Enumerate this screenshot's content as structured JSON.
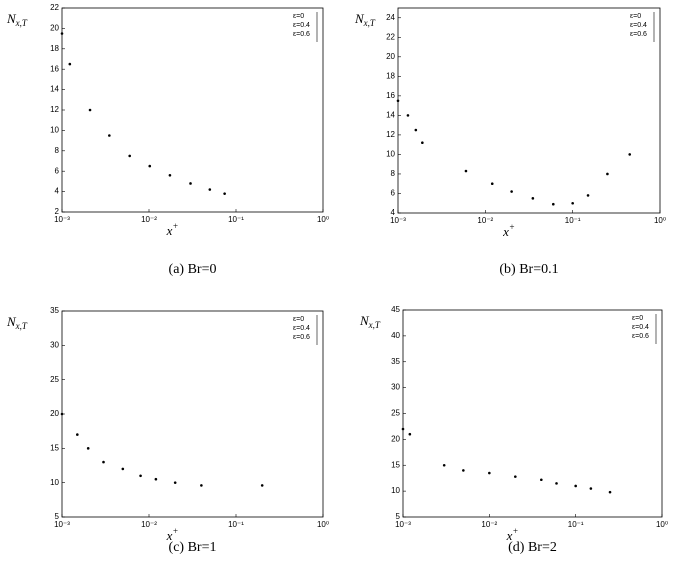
{
  "chart_data": [
    {
      "type": "scatter",
      "caption": "(a) Br=0",
      "xlabel": "x",
      "xlabel_sup": "+",
      "ylabel": "N",
      "ylabel_sub": "x,T",
      "legend": [
        "ε=0",
        "ε=0.4",
        "ε=0.6"
      ],
      "log_x": true,
      "color": "#000000",
      "x": [
        0.001,
        0.00123,
        0.0021,
        0.0035,
        0.006,
        0.0102,
        0.0174,
        0.03,
        0.05,
        0.074
      ],
      "values": [
        19.5,
        16.5,
        12,
        9.5,
        7.5,
        6.5,
        5.6,
        4.8,
        4.2,
        3.8
      ],
      "xlim": [
        0.001,
        1
      ],
      "xticks": [
        {
          "value": 0.001,
          "label": "10⁻³"
        },
        {
          "value": 0.01,
          "label": "10⁻²"
        },
        {
          "value": 0.1,
          "label": "10⁻¹"
        },
        {
          "value": 1,
          "label": "10⁰"
        }
      ],
      "ylim": [
        2,
        22
      ],
      "yticks": [
        2,
        4,
        6,
        8,
        10,
        12,
        14,
        16,
        18,
        20,
        22
      ]
    },
    {
      "type": "scatter",
      "caption": "(b) Br=0.1",
      "xlabel": "x",
      "xlabel_sup": "+",
      "ylabel": "N",
      "ylabel_sub": "x,T",
      "legend": [
        "ε=0",
        "ε=0.4",
        "ε=0.6"
      ],
      "log_x": true,
      "color": "#000000",
      "x": [
        0.001,
        0.0013,
        0.0016,
        0.0019,
        0.006,
        0.012,
        0.02,
        0.035,
        0.06,
        0.1,
        0.15,
        0.25,
        0.45
      ],
      "values": [
        15.5,
        14,
        12.5,
        11.2,
        8.3,
        7,
        6.2,
        5.5,
        4.9,
        5,
        5.8,
        8,
        10
      ],
      "xlim": [
        0.001,
        1
      ],
      "xticks": [
        {
          "value": 0.001,
          "label": "10⁻³"
        },
        {
          "value": 0.01,
          "label": "10⁻²"
        },
        {
          "value": 0.1,
          "label": "10⁻¹"
        },
        {
          "value": 1,
          "label": "10⁰"
        }
      ],
      "ylim": [
        4,
        25
      ],
      "yticks": [
        4,
        6,
        8,
        10,
        12,
        14,
        16,
        18,
        20,
        22,
        24
      ]
    },
    {
      "type": "scatter",
      "caption": "(c) Br=1",
      "xlabel": "x",
      "xlabel_sup": "+",
      "ylabel": "N",
      "ylabel_sub": "x,T",
      "legend": [
        "ε=0",
        "ε=0.4",
        "ε=0.6"
      ],
      "log_x": true,
      "color": "#000000",
      "x": [
        0.001,
        0.0015,
        0.002,
        0.003,
        0.005,
        0.008,
        0.012,
        0.02,
        0.04,
        0.2
      ],
      "values": [
        20,
        17,
        15,
        13,
        12,
        11,
        10.5,
        10,
        9.6,
        9.6
      ],
      "xlim": [
        0.001,
        1
      ],
      "xticks": [
        {
          "value": 0.001,
          "label": "10⁻³"
        },
        {
          "value": 0.01,
          "label": "10⁻²"
        },
        {
          "value": 0.1,
          "label": "10⁻¹"
        },
        {
          "value": 1,
          "label": "10⁰"
        }
      ],
      "ylim": [
        5,
        35
      ],
      "yticks": [
        5,
        10,
        15,
        20,
        25,
        30,
        35
      ]
    },
    {
      "type": "scatter",
      "caption": "(d) Br=2",
      "xlabel": "x",
      "xlabel_sup": "+",
      "ylabel": "N",
      "ylabel_sub": "x,T",
      "legend": [
        "ε=0",
        "ε=0.4",
        "ε=0.6"
      ],
      "log_x": true,
      "color": "#000000",
      "x": [
        0.001,
        0.0012,
        0.003,
        0.005,
        0.01,
        0.02,
        0.04,
        0.06,
        0.1,
        0.15,
        0.25
      ],
      "values": [
        22,
        21,
        15,
        14,
        13.5,
        12.8,
        12.2,
        11.5,
        11,
        10.5,
        9.8
      ],
      "xlim": [
        0.001,
        1
      ],
      "xticks": [
        {
          "value": 0.001,
          "label": "10⁻³"
        },
        {
          "value": 0.01,
          "label": "10⁻²"
        },
        {
          "value": 0.1,
          "label": "10⁻¹"
        },
        {
          "value": 1,
          "label": "10⁰"
        }
      ],
      "ylim": [
        5,
        45
      ],
      "yticks": [
        5,
        10,
        15,
        20,
        25,
        30,
        35,
        40,
        45
      ]
    }
  ]
}
